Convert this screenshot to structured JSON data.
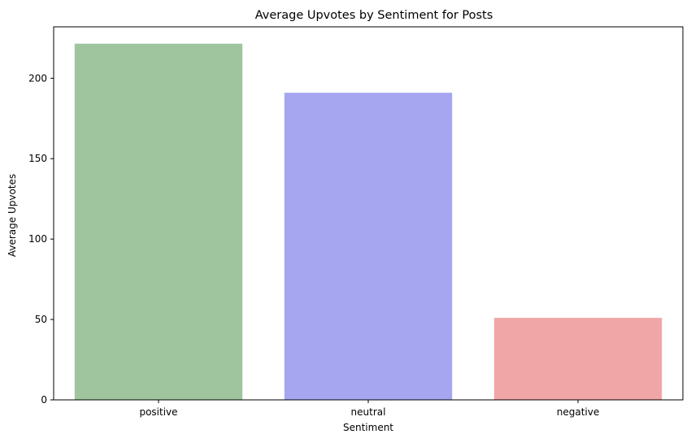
{
  "chart_data": {
    "type": "bar",
    "title": "Average Upvotes by Sentiment for Posts",
    "xlabel": "Sentiment",
    "ylabel": "Average Upvotes",
    "categories": [
      "positive",
      "neutral",
      "negative"
    ],
    "values": [
      221.5,
      191,
      51
    ],
    "colors": [
      "#9fc59f",
      "#a6a6f0",
      "#f0a6a6"
    ],
    "ylim": [
      0,
      232
    ],
    "yticks": [
      0,
      50,
      100,
      150,
      200
    ],
    "grid": false,
    "legend": "none"
  }
}
